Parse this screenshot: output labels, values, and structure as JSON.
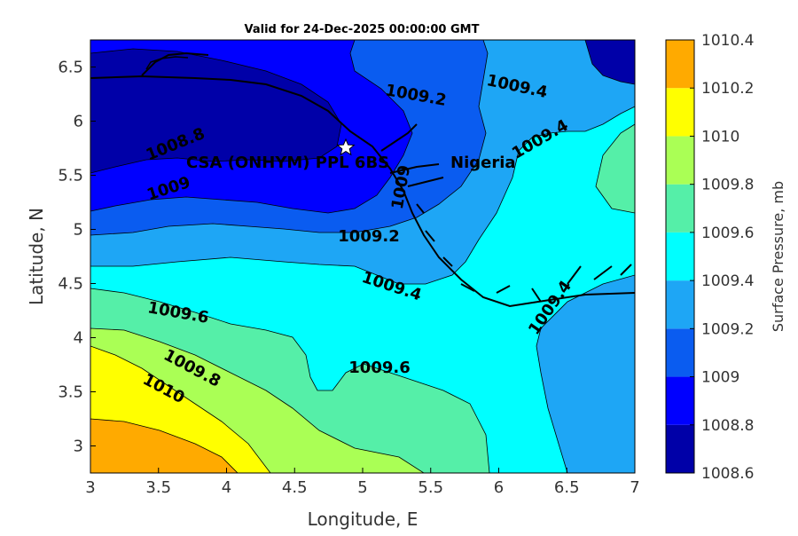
{
  "figure": {
    "title": "Valid for 24-Dec-2025 00:00:00 GMT",
    "xlabel": "Longitude, E",
    "ylabel": "Latitude, N",
    "colorbar_label": "Surface Pressure, mb",
    "xlim": [
      3,
      7
    ],
    "ylim": [
      2.75,
      6.75
    ],
    "x_ticks": [
      "3",
      "3.5",
      "4",
      "4.5",
      "5",
      "5.5",
      "6",
      "6.5",
      "7"
    ],
    "y_ticks": [
      "3",
      "3.5",
      "4",
      "4.5",
      "5",
      "5.5",
      "6",
      "6.5"
    ]
  },
  "colorbar": {
    "levels": [
      "1008.6",
      "1008.8",
      "1009",
      "1009.2",
      "1009.4",
      "1009.6",
      "1009.8",
      "1010",
      "1010.2",
      "1010.4"
    ],
    "colors": [
      "#0000a8",
      "#0000ff",
      "#0a5cf0",
      "#1ea6f5",
      "#00ffff",
      "#55efa8",
      "#aaff55",
      "#ffff00",
      "#ffaa00",
      "#ff5500"
    ]
  },
  "contour_labels": [
    "1008.8",
    "1009",
    "1009.2",
    "1009.4",
    "1009.4",
    "1009.2",
    "1009.4",
    "1009.6",
    "1009.6",
    "1009.8",
    "1010",
    "1009.4",
    "1009"
  ],
  "site": {
    "label": "CSA (ONHYM) PPL 6BS",
    "country_label": "Nigeria",
    "lon": 4.88,
    "lat": 5.75
  }
}
